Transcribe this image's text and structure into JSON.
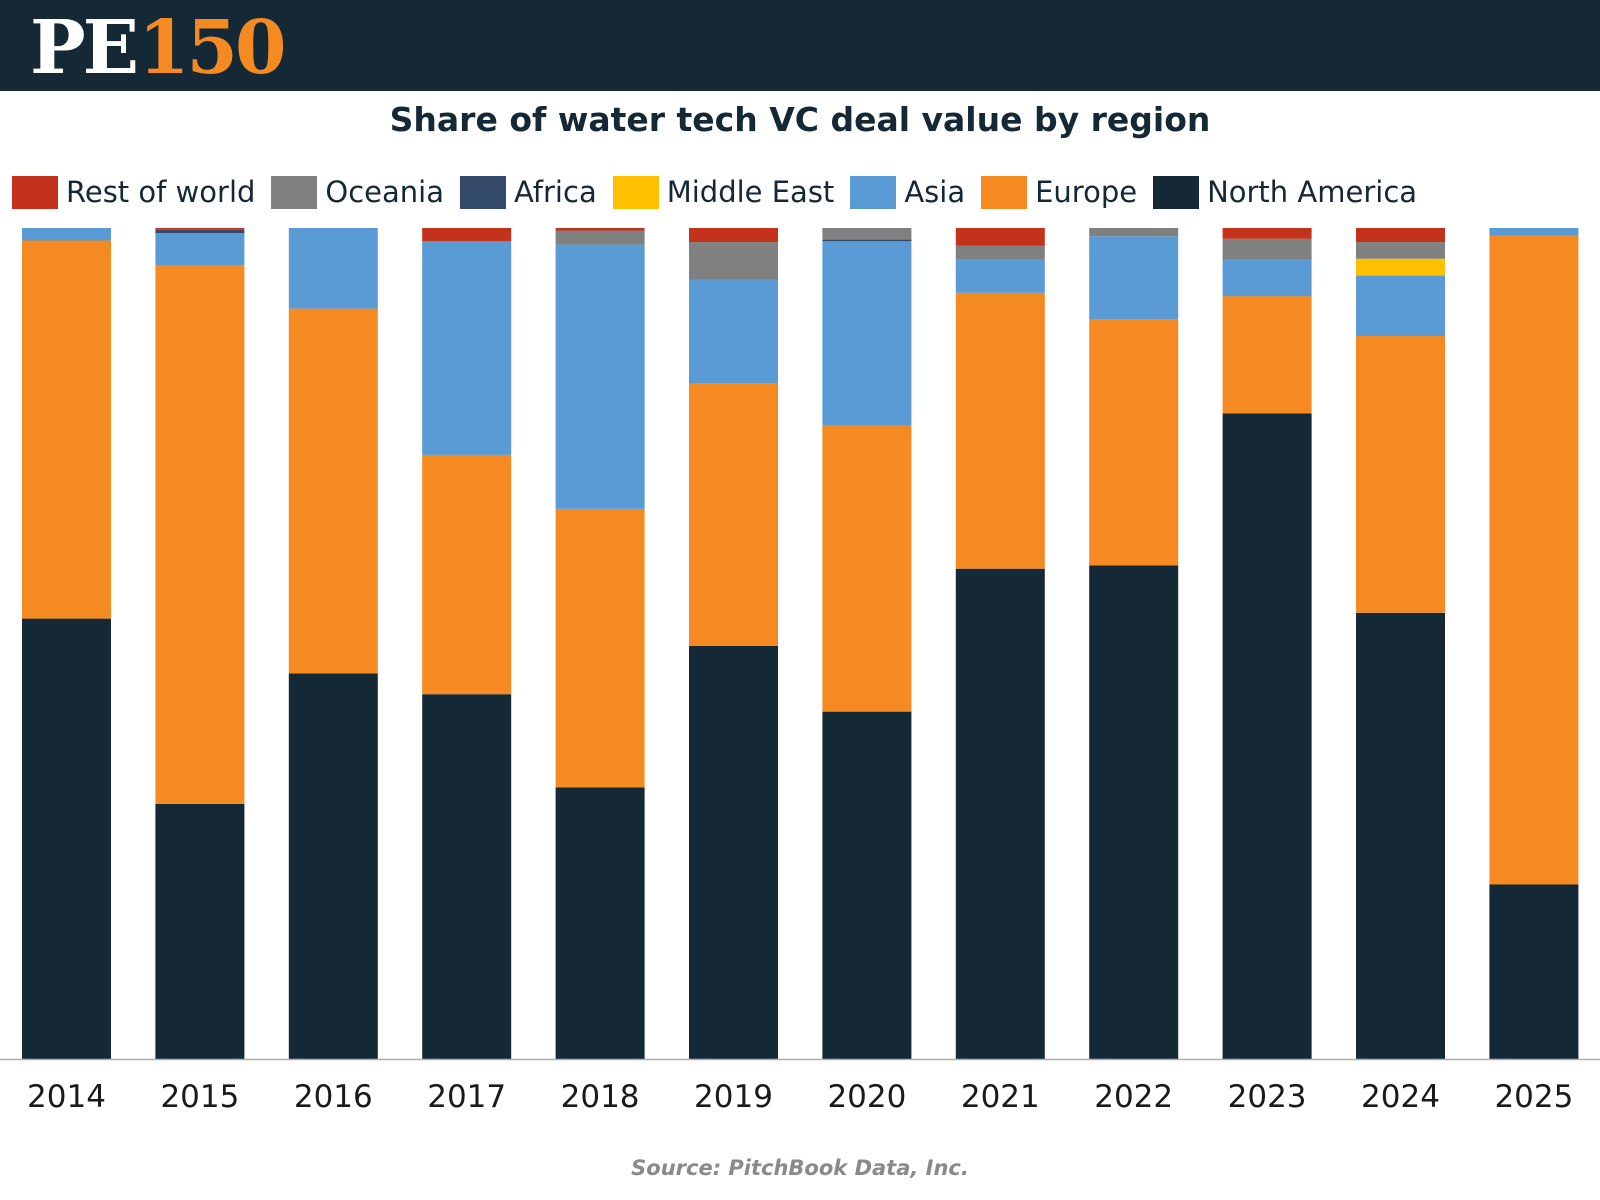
{
  "brand": {
    "logo_text": "PE",
    "logo_number": "150"
  },
  "source": "Source: PitchBook Data, Inc.",
  "colors": {
    "header_bg": "#142935",
    "logo_accent": "#f58a22"
  },
  "chart_data": {
    "type": "bar",
    "stacked": true,
    "title": "Share of water tech VC deal value by region",
    "xlabel": "",
    "ylabel": "",
    "ylim": [
      0,
      1
    ],
    "grid": false,
    "legend_position": "top",
    "categories": [
      "2014",
      "2015",
      "2016",
      "2017",
      "2018",
      "2019",
      "2020",
      "2021",
      "2022",
      "2023",
      "2024",
      "2025"
    ],
    "series": [
      {
        "name": "North America",
        "color": "#142935",
        "values": [
          0.53,
          0.307,
          0.464,
          0.439,
          0.327,
          0.497,
          0.418,
          0.59,
          0.594,
          0.777,
          0.537,
          0.21
        ]
      },
      {
        "name": "Europe",
        "color": "#f58a22",
        "values": [
          0.455,
          0.648,
          0.439,
          0.288,
          0.335,
          0.316,
          0.344,
          0.332,
          0.296,
          0.141,
          0.333,
          0.781
        ]
      },
      {
        "name": "Asia",
        "color": "#5b9bd5",
        "values": [
          0.015,
          0.039,
          0.097,
          0.257,
          0.318,
          0.125,
          0.222,
          0.04,
          0.1,
          0.044,
          0.073,
          0.009
        ]
      },
      {
        "name": "Middle East",
        "color": "#ffc000",
        "values": [
          0,
          0,
          0,
          0,
          0,
          0,
          0,
          0,
          0,
          0,
          0.02,
          0
        ]
      },
      {
        "name": "Africa",
        "color": "#344a6b",
        "values": [
          0,
          0.004,
          0,
          0,
          0,
          0,
          0.002,
          0,
          0,
          0,
          0,
          0
        ]
      },
      {
        "name": "Oceania",
        "color": "#808080",
        "values": [
          0,
          0,
          0,
          0,
          0.017,
          0.045,
          0.014,
          0.017,
          0.01,
          0.025,
          0.02,
          0
        ]
      },
      {
        "name": "Rest of world",
        "color": "#c4321c",
        "values": [
          0,
          0.002,
          0,
          0.016,
          0.003,
          0.017,
          0,
          0.021,
          0,
          0.013,
          0.017,
          0
        ]
      }
    ],
    "legend_order": [
      "Rest of world",
      "Oceania",
      "Africa",
      "Middle East",
      "Asia",
      "Europe",
      "North America"
    ]
  }
}
